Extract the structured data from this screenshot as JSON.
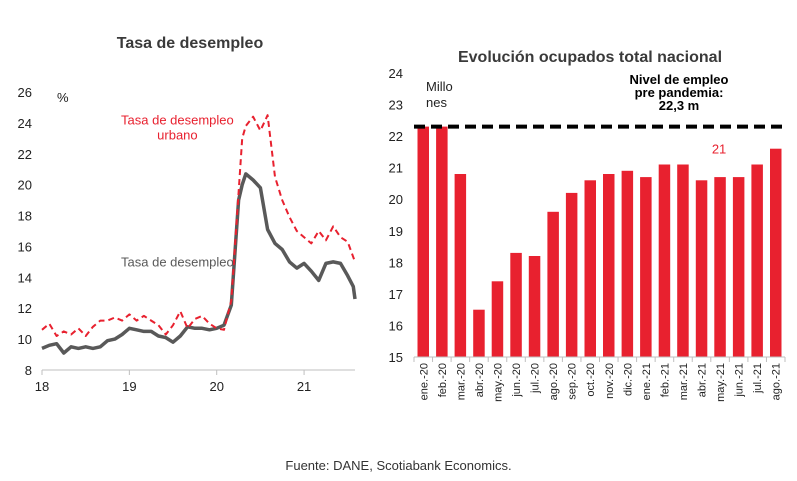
{
  "source": "Fuente: DANE, Scotiabank Economics.",
  "colors": {
    "red": "#e8212f",
    "gray": "#595959",
    "black": "#000000"
  },
  "chart_data": [
    {
      "type": "line",
      "title": "Tasa de desempleo",
      "ylabel": "%",
      "ylim": [
        8,
        26
      ],
      "yticks": [
        8,
        10,
        12,
        14,
        16,
        18,
        20,
        22,
        24,
        26
      ],
      "xlim": [
        18,
        21.583
      ],
      "xticks": [
        {
          "label": "18",
          "value": 18
        },
        {
          "label": "19",
          "value": 19
        },
        {
          "label": "20",
          "value": 20
        },
        {
          "label": "21",
          "value": 21
        }
      ],
      "series": [
        {
          "name": "Tasa de desempleo urbano",
          "style": "dashed",
          "color": "#e8212f",
          "x": [
            18.0,
            18.083,
            18.167,
            18.25,
            18.333,
            18.417,
            18.5,
            18.583,
            18.667,
            18.75,
            18.833,
            18.917,
            19.0,
            19.083,
            19.167,
            19.25,
            19.333,
            19.417,
            19.5,
            19.583,
            19.667,
            19.75,
            19.833,
            19.917,
            20.0,
            20.083,
            20.167,
            20.25,
            20.292,
            20.333,
            20.417,
            20.5,
            20.583,
            20.667,
            20.75,
            20.833,
            20.917,
            21.0,
            21.083,
            21.167,
            21.25,
            21.333,
            21.417,
            21.5,
            21.583
          ],
          "y": [
            10.6,
            11.0,
            10.2,
            10.5,
            10.3,
            10.7,
            10.2,
            10.8,
            11.2,
            11.2,
            11.4,
            11.2,
            11.6,
            11.2,
            11.5,
            11.2,
            10.9,
            10.3,
            10.9,
            11.8,
            10.7,
            11.3,
            11.5,
            11.0,
            10.7,
            10.6,
            12.5,
            19.5,
            23.0,
            23.8,
            24.4,
            23.5,
            24.5,
            20.5,
            19.0,
            17.9,
            17.0,
            16.6,
            16.2,
            17.0,
            16.4,
            17.3,
            16.6,
            16.3,
            15.0
          ]
        },
        {
          "name": "Tasa de desempleo",
          "style": "solid",
          "color": "#595959",
          "x": [
            18.0,
            18.083,
            18.167,
            18.25,
            18.333,
            18.417,
            18.5,
            18.583,
            18.667,
            18.75,
            18.833,
            18.917,
            19.0,
            19.083,
            19.167,
            19.25,
            19.333,
            19.417,
            19.5,
            19.583,
            19.667,
            19.75,
            19.833,
            19.917,
            20.0,
            20.083,
            20.167,
            20.25,
            20.292,
            20.333,
            20.417,
            20.5,
            20.583,
            20.667,
            20.75,
            20.833,
            20.917,
            21.0,
            21.083,
            21.167,
            21.25,
            21.333,
            21.417,
            21.5,
            21.563,
            21.583
          ],
          "y": [
            9.4,
            9.6,
            9.7,
            9.1,
            9.5,
            9.4,
            9.5,
            9.4,
            9.5,
            9.9,
            10.0,
            10.3,
            10.7,
            10.6,
            10.5,
            10.5,
            10.2,
            10.1,
            9.8,
            10.2,
            10.8,
            10.7,
            10.7,
            10.6,
            10.7,
            10.9,
            12.2,
            19.0,
            20.0,
            20.7,
            20.3,
            19.8,
            17.1,
            16.2,
            15.8,
            15.0,
            14.6,
            14.9,
            14.4,
            13.8,
            14.9,
            15.0,
            14.9,
            14.1,
            13.4,
            12.6
          ]
        }
      ],
      "annotations": [
        {
          "lines": [
            "Tasa de desempleo",
            "urbano"
          ],
          "color": "#e8212f",
          "x": 19.55,
          "y": 23.9
        },
        {
          "lines": [
            "Tasa de desempleo"
          ],
          "color": "#595959",
          "x": 19.55,
          "y": 14.7
        }
      ]
    },
    {
      "type": "bar",
      "title": "Evolución ocupados total nacional",
      "ylabel_lines": [
        "Millo",
        "nes"
      ],
      "ylim": [
        15,
        24
      ],
      "yticks": [
        15,
        16,
        17,
        18,
        19,
        20,
        21,
        22,
        23,
        24
      ],
      "color": "#e8212f",
      "categories": [
        "ene.-20",
        "feb.-20",
        "mar.-20",
        "abr.-20",
        "may.-20",
        "jun.-20",
        "jul.-20",
        "ago.-20",
        "sep.-20",
        "oct.-20",
        "nov.-20",
        "dic.-20",
        "ene.-21",
        "feb.-21",
        "mar.-21",
        "abr.-21",
        "may.-21",
        "jun.-21",
        "jul.-21",
        "ago.-21"
      ],
      "values": [
        22.3,
        22.3,
        20.8,
        16.5,
        17.4,
        18.3,
        18.2,
        19.6,
        20.2,
        20.6,
        20.8,
        20.9,
        20.7,
        21.1,
        21.1,
        20.6,
        20.7,
        20.7,
        21.1,
        21.6
      ],
      "reference": {
        "value": 22.3,
        "style": "dashed",
        "color": "#000000",
        "label_lines": [
          "Nivel de empleo",
          "pre pandemia:",
          "22,3 m"
        ]
      },
      "annotations": [
        {
          "text": "21",
          "color": "#e8212f",
          "category_index": 16,
          "y": 21.2
        }
      ]
    }
  ]
}
